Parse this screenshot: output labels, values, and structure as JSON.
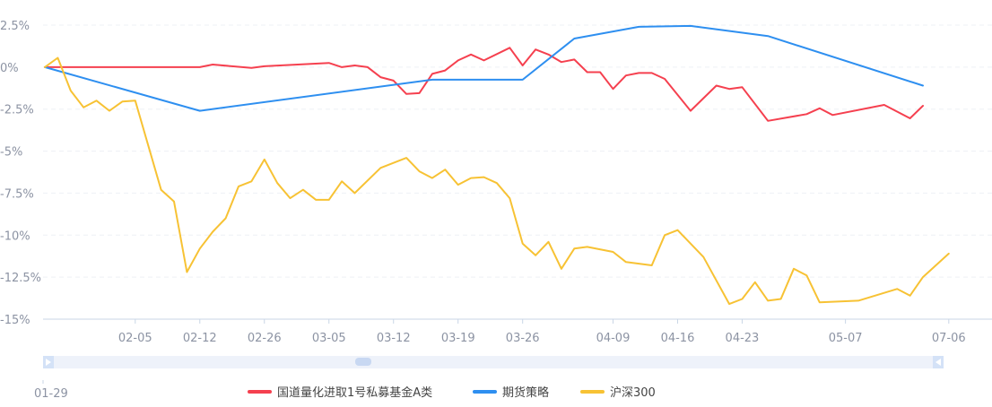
{
  "chart_data": {
    "type": "line",
    "y_ticks": [
      {
        "value": 2.5,
        "label": "2.5%"
      },
      {
        "value": 0,
        "label": "0%"
      },
      {
        "value": -2.5,
        "label": "-2.5%"
      },
      {
        "value": -5,
        "label": "-5%"
      },
      {
        "value": -7.5,
        "label": "-7.5%"
      },
      {
        "value": -10,
        "label": "-10%"
      },
      {
        "value": -12.5,
        "label": "-12.5%"
      },
      {
        "value": -15,
        "label": "-15%"
      }
    ],
    "ylim": [
      -15,
      2.5
    ],
    "x_ticks": [
      "02-05",
      "02-12",
      "02-26",
      "03-05",
      "03-12",
      "03-19",
      "03-26",
      "04-09",
      "04-16",
      "04-23",
      "05-07",
      "07-06"
    ],
    "x_tick_index": [
      7,
      12,
      17,
      22,
      27,
      32,
      37,
      44,
      49,
      54,
      62,
      70
    ],
    "x_count": 74,
    "zoom_start_label": "01-29",
    "grid": true,
    "legend_position": "bottom",
    "series": [
      {
        "name": "国道量化进取1号私募基金A类",
        "color": "#f5404f",
        "points": [
          [
            0,
            0
          ],
          [
            1,
            0
          ],
          [
            2,
            0
          ],
          [
            12,
            0
          ],
          [
            13,
            0.15
          ],
          [
            16,
            -0.05
          ],
          [
            17,
            0.05
          ],
          [
            22,
            0.25
          ],
          [
            23,
            0
          ],
          [
            24,
            0.1
          ],
          [
            25,
            0
          ],
          [
            26,
            -0.6
          ],
          [
            27,
            -0.8
          ],
          [
            28,
            -1.6
          ],
          [
            29,
            -1.55
          ],
          [
            30,
            -0.4
          ],
          [
            31,
            -0.2
          ],
          [
            32,
            0.4
          ],
          [
            33,
            0.75
          ],
          [
            34,
            0.4
          ],
          [
            36,
            1.15
          ],
          [
            37,
            0.1
          ],
          [
            38,
            1.05
          ],
          [
            39,
            0.75
          ],
          [
            40,
            0.3
          ],
          [
            41,
            0.45
          ],
          [
            42,
            -0.3
          ],
          [
            43,
            -0.3
          ],
          [
            44,
            -1.3
          ],
          [
            45,
            -0.5
          ],
          [
            46,
            -0.35
          ],
          [
            47,
            -0.35
          ],
          [
            48,
            -0.7
          ],
          [
            50,
            -2.6
          ],
          [
            52,
            -1.1
          ],
          [
            53,
            -1.3
          ],
          [
            54,
            -1.2
          ],
          [
            56,
            -3.2
          ],
          [
            59,
            -2.8
          ],
          [
            60,
            -2.45
          ],
          [
            61,
            -2.85
          ],
          [
            65,
            -2.25
          ],
          [
            67,
            -3.05
          ],
          [
            68,
            -2.3
          ]
        ]
      },
      {
        "name": "期货策略",
        "color": "#2e8ff0",
        "points": [
          [
            0,
            0
          ],
          [
            12,
            -2.6
          ],
          [
            30,
            -0.75
          ],
          [
            37,
            -0.75
          ],
          [
            41,
            1.7
          ],
          [
            46,
            2.4
          ],
          [
            50,
            2.45
          ],
          [
            56,
            1.85
          ],
          [
            68,
            -1.1
          ]
        ]
      },
      {
        "name": "沪深300",
        "color": "#f7c234",
        "points": [
          [
            0,
            0
          ],
          [
            1,
            0.55
          ],
          [
            2,
            -1.4
          ],
          [
            3,
            -2.4
          ],
          [
            4,
            -2
          ],
          [
            5,
            -2.6
          ],
          [
            6,
            -2.05
          ],
          [
            7,
            -2
          ],
          [
            9,
            -7.3
          ],
          [
            10,
            -8
          ],
          [
            11,
            -12.2
          ],
          [
            12,
            -10.8
          ],
          [
            13,
            -9.8
          ],
          [
            14,
            -9
          ],
          [
            15,
            -7.1
          ],
          [
            16,
            -6.8
          ],
          [
            17,
            -5.5
          ],
          [
            18,
            -6.9
          ],
          [
            19,
            -7.8
          ],
          [
            20,
            -7.3
          ],
          [
            21,
            -7.9
          ],
          [
            22,
            -7.9
          ],
          [
            23,
            -6.8
          ],
          [
            24,
            -7.5
          ],
          [
            26,
            -6
          ],
          [
            28,
            -5.4
          ],
          [
            29,
            -6.2
          ],
          [
            30,
            -6.6
          ],
          [
            31,
            -6.1
          ],
          [
            32,
            -7
          ],
          [
            33,
            -6.6
          ],
          [
            34,
            -6.55
          ],
          [
            35,
            -6.9
          ],
          [
            36,
            -7.8
          ],
          [
            37,
            -10.5
          ],
          [
            38,
            -11.2
          ],
          [
            39,
            -10.4
          ],
          [
            40,
            -12
          ],
          [
            41,
            -10.8
          ],
          [
            42,
            -10.7
          ],
          [
            44,
            -11
          ],
          [
            45,
            -11.6
          ],
          [
            46,
            -11.7
          ],
          [
            47,
            -11.8
          ],
          [
            48,
            -10
          ],
          [
            49,
            -9.7
          ],
          [
            51,
            -11.3
          ],
          [
            53,
            -14.1
          ],
          [
            54,
            -13.8
          ],
          [
            55,
            -12.8
          ],
          [
            56,
            -13.9
          ],
          [
            57,
            -13.8
          ],
          [
            58,
            -12
          ],
          [
            59,
            -12.4
          ],
          [
            60,
            -14
          ],
          [
            63,
            -13.9
          ],
          [
            66,
            -13.2
          ],
          [
            67,
            -13.6
          ],
          [
            68,
            -12.5
          ],
          [
            70,
            -11.1
          ]
        ]
      }
    ]
  },
  "colors": {
    "grid": "#edf0f5",
    "axis": "#c9d6e6",
    "slider_bg": "#eef2fa",
    "slider_handle": "#d4e2f7"
  }
}
